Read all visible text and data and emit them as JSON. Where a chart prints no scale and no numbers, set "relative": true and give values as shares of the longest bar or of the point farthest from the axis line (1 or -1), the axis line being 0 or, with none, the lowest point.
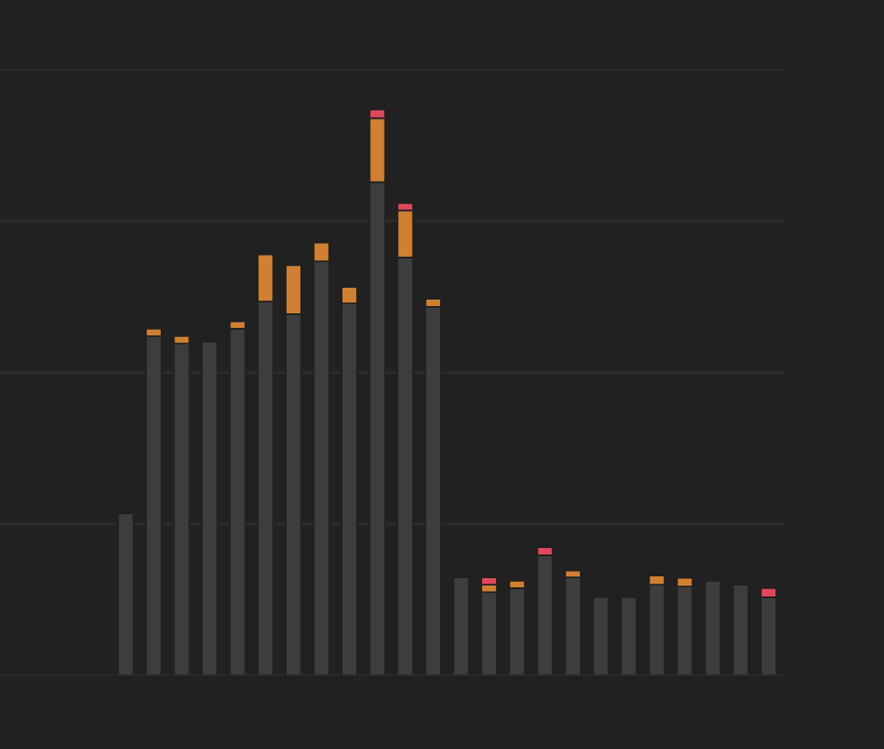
{
  "chart_data": {
    "type": "bar",
    "stacked": true,
    "relative": true,
    "grid": "y",
    "categories": [
      null,
      null,
      null,
      null,
      null,
      null,
      null,
      null,
      null,
      null,
      null,
      null,
      null,
      null,
      null,
      null,
      null,
      null,
      null,
      null,
      null,
      null,
      null,
      null
    ],
    "series": [
      {
        "color": "#3d3d3d",
        "values": [
          0.287,
          0.6,
          0.587,
          0.59,
          0.613,
          0.661,
          0.639,
          0.732,
          0.658,
          0.872,
          0.739,
          0.652,
          0.174,
          0.148,
          0.155,
          0.213,
          0.174,
          0.139,
          0.139,
          0.161,
          0.158,
          0.168,
          0.161,
          0.139
        ]
      },
      {
        "color": "#d08030",
        "values": [
          null,
          0.013,
          0.013,
          null,
          0.013,
          0.083,
          0.086,
          0.033,
          0.029,
          0.113,
          0.083,
          0.014,
          null,
          0.013,
          0.013,
          null,
          0.012,
          null,
          null,
          0.016,
          0.015,
          null,
          null,
          null
        ]
      },
      {
        "color": "#e0485a",
        "values": [
          null,
          null,
          null,
          null,
          null,
          null,
          null,
          null,
          null,
          0.015,
          0.013,
          null,
          null,
          0.013,
          null,
          0.014,
          null,
          null,
          null,
          null,
          null,
          null,
          null,
          0.016
        ]
      }
    ]
  }
}
